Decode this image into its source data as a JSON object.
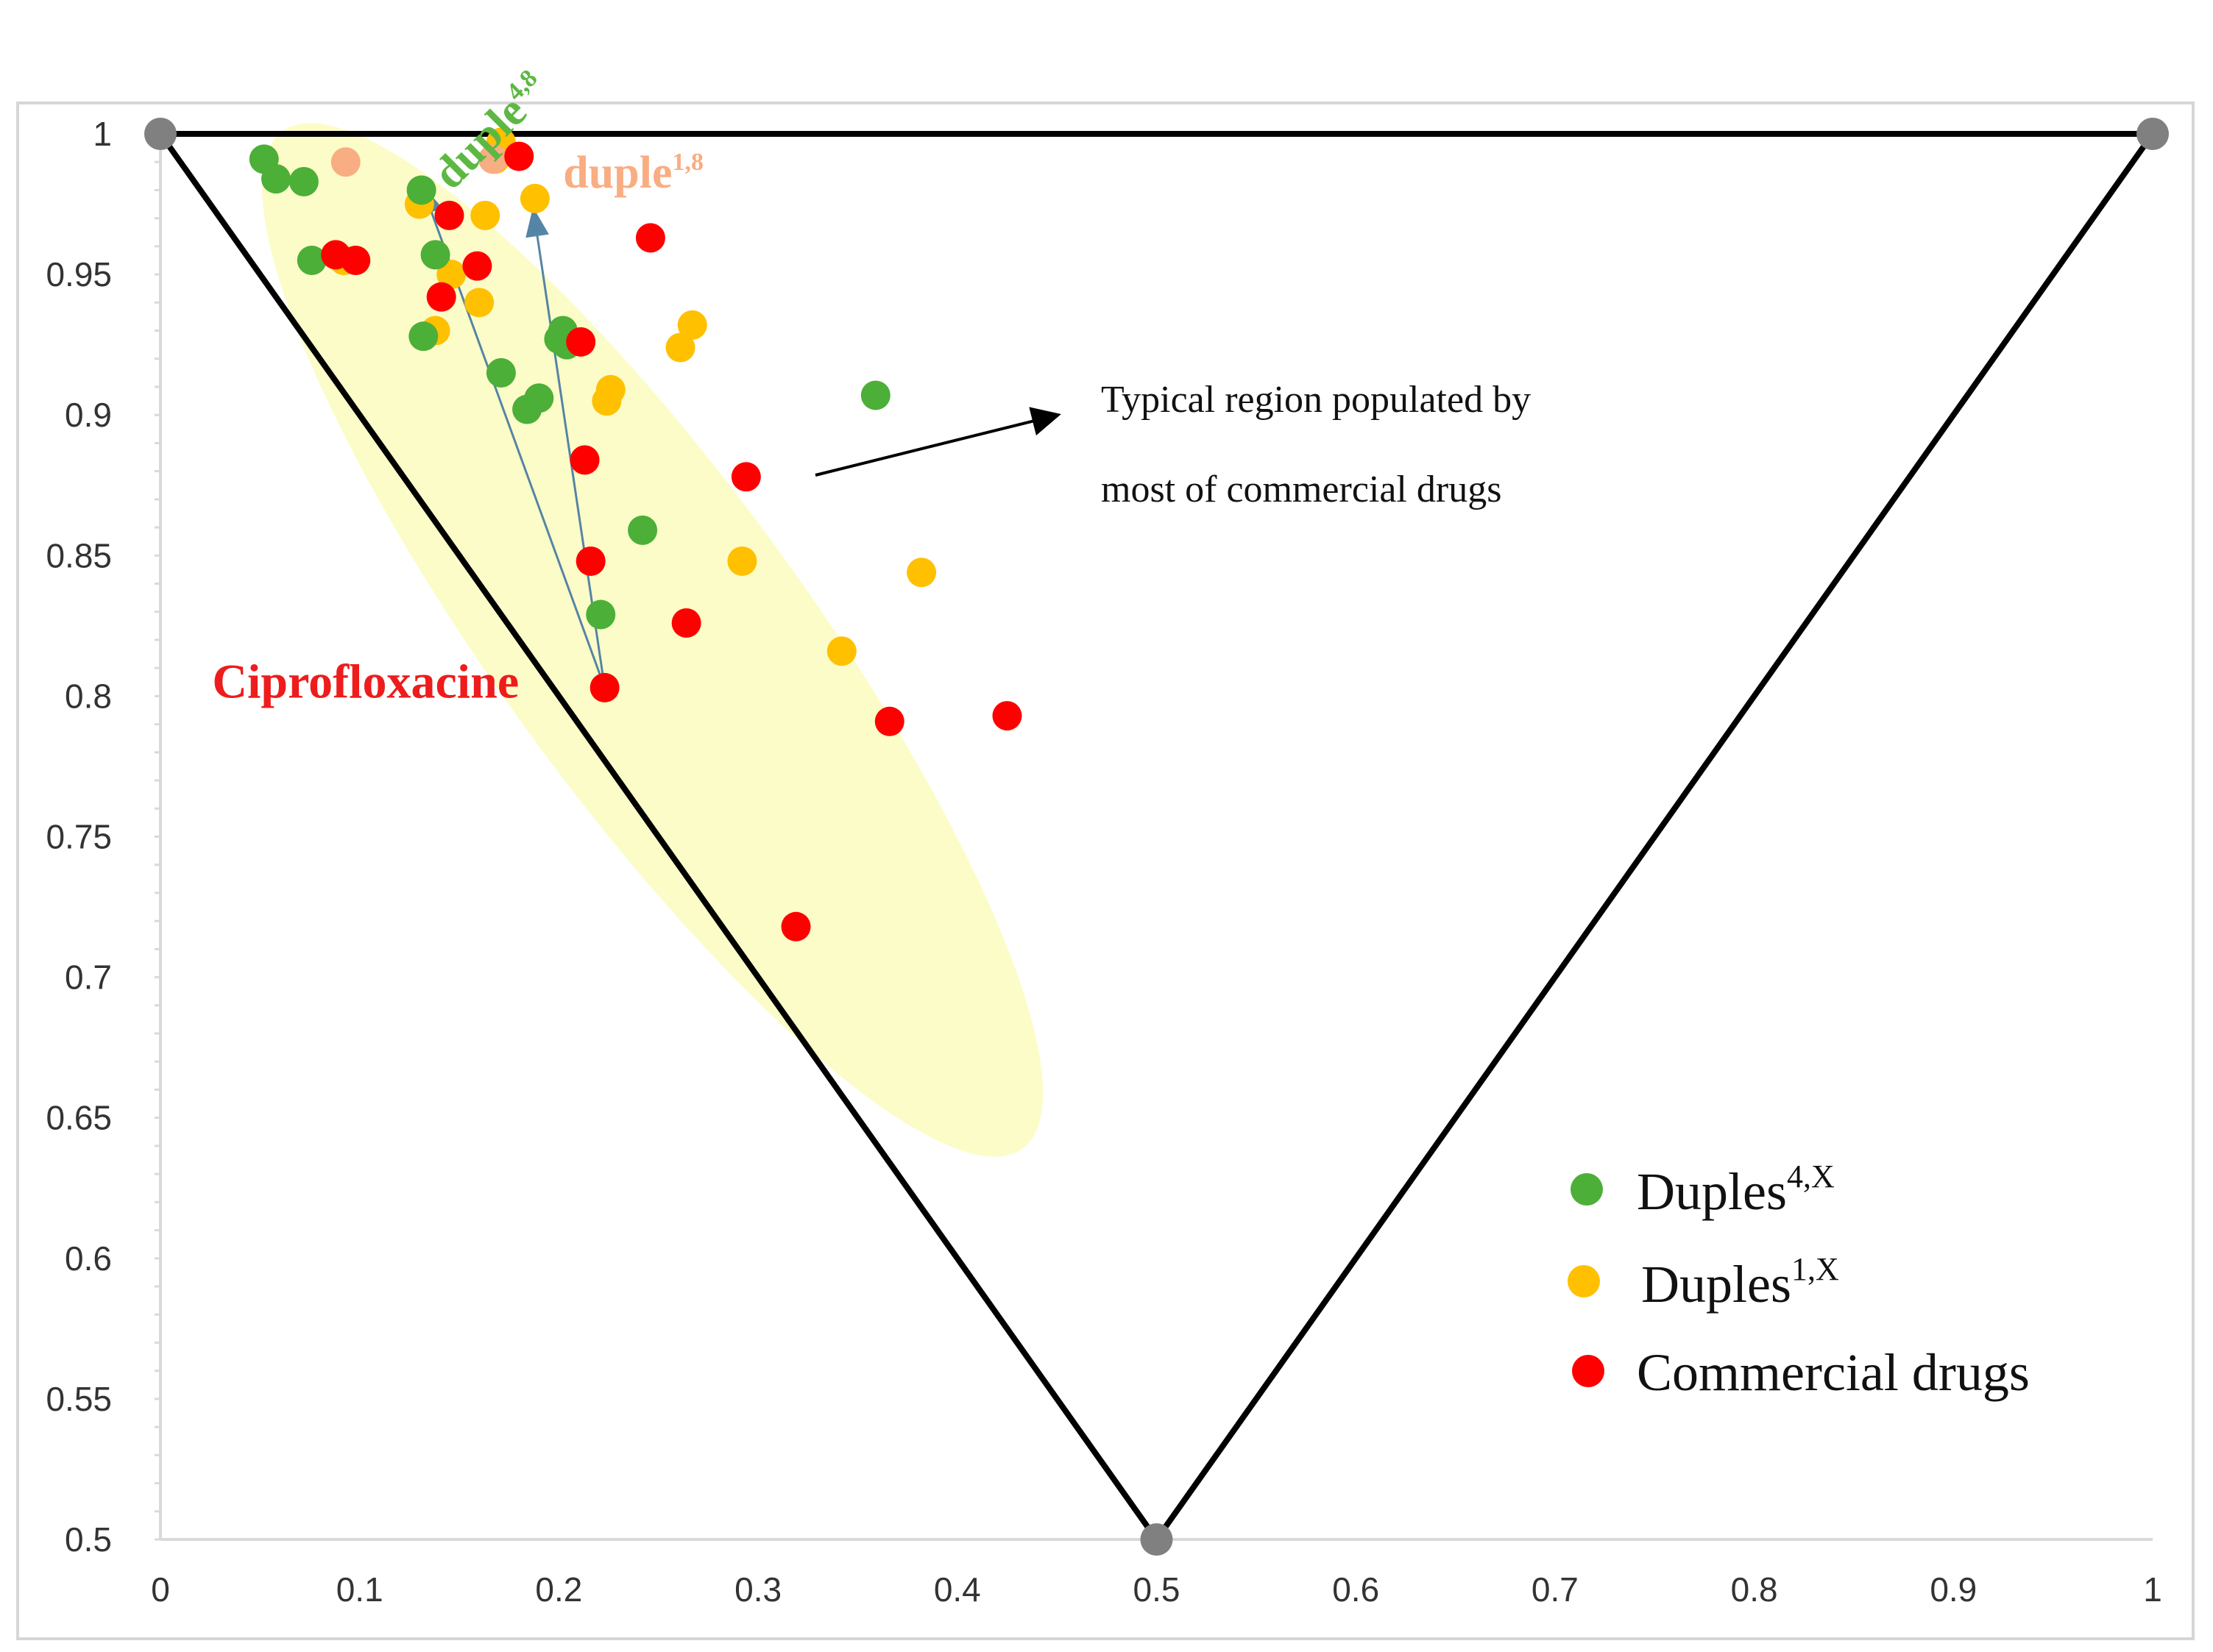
{
  "chart_data": {
    "type": "scatter",
    "title": "",
    "xlabel": "",
    "ylabel": "",
    "xlim": [
      0,
      1
    ],
    "ylim": [
      0.5,
      1
    ],
    "x_ticks": [
      "0",
      "0.1",
      "0.2",
      "0.3",
      "0.4",
      "0.5",
      "0.6",
      "0.7",
      "0.8",
      "0.9",
      "1"
    ],
    "y_ticks": [
      "0.5",
      "0.55",
      "0.6",
      "0.65",
      "0.7",
      "0.75",
      "0.8",
      "0.85",
      "0.9",
      "0.95",
      "1"
    ],
    "triangle": {
      "vertices": [
        [
          0,
          1
        ],
        [
          1,
          1
        ],
        [
          0.5,
          0.5
        ]
      ],
      "vertex_color": "#808080",
      "edge_color": "#000000"
    },
    "region": {
      "label_line1": "Typical region populated by",
      "label_line2": "most of commercial drugs",
      "fill": "#fcfcc8",
      "center": [
        0.247,
        0.82
      ],
      "semi_axes": [
        0.28,
        0.085
      ],
      "angle_deg": -54
    },
    "series": [
      {
        "name": "Duples",
        "superscript": "4,X",
        "color": "#4caf38",
        "points": [
          [
            0.052,
            0.991
          ],
          [
            0.058,
            0.984
          ],
          [
            0.072,
            0.983
          ],
          [
            0.076,
            0.955
          ],
          [
            0.131,
            0.98
          ],
          [
            0.138,
            0.957
          ],
          [
            0.132,
            0.928
          ],
          [
            0.171,
            0.915
          ],
          [
            0.184,
            0.902
          ],
          [
            0.19,
            0.906
          ],
          [
            0.2,
            0.927
          ],
          [
            0.202,
            0.93
          ],
          [
            0.204,
            0.925
          ],
          [
            0.221,
            0.829
          ],
          [
            0.242,
            0.859
          ],
          [
            0.359,
            0.907
          ]
        ]
      },
      {
        "name": "Duples",
        "superscript": "1,X",
        "color": "#ffc000",
        "points": [
          [
            0.092,
            0.955
          ],
          [
            0.13,
            0.975
          ],
          [
            0.138,
            0.93
          ],
          [
            0.146,
            0.95
          ],
          [
            0.16,
            0.94
          ],
          [
            0.163,
            0.971
          ],
          [
            0.168,
            0.991
          ],
          [
            0.171,
            0.997
          ],
          [
            0.188,
            0.977
          ],
          [
            0.224,
            0.905
          ],
          [
            0.226,
            0.909
          ],
          [
            0.261,
            0.924
          ],
          [
            0.267,
            0.932
          ],
          [
            0.292,
            0.848
          ],
          [
            0.342,
            0.816
          ],
          [
            0.382,
            0.844
          ]
        ]
      },
      {
        "name": "Commercial drugs",
        "superscript": "",
        "color": "#ff0000",
        "points": [
          [
            0.088,
            0.957
          ],
          [
            0.098,
            0.955
          ],
          [
            0.141,
            0.942
          ],
          [
            0.145,
            0.971
          ],
          [
            0.159,
            0.953
          ],
          [
            0.18,
            0.992
          ],
          [
            0.211,
            0.926
          ],
          [
            0.213,
            0.884
          ],
          [
            0.216,
            0.848
          ],
          [
            0.223,
            0.803
          ],
          [
            0.246,
            0.963
          ],
          [
            0.264,
            0.826
          ],
          [
            0.294,
            0.878
          ],
          [
            0.319,
            0.718
          ],
          [
            0.366,
            0.791
          ],
          [
            0.425,
            0.793
          ]
        ]
      },
      {
        "name": "Duple 1,8 highlight",
        "superscript": "",
        "color": "#f9ad82",
        "points": [
          [
            0.093,
            0.99
          ],
          [
            0.167,
            0.991
          ]
        ]
      }
    ],
    "annotations": [
      {
        "text": "duple",
        "superscript": "4,8",
        "color": "#5cb842",
        "rotation_deg": -45,
        "anchor": [
          0.13,
          0.99
        ]
      },
      {
        "text": "duple",
        "superscript": "1,8",
        "color": "#f9ad82",
        "rotation_deg": 0,
        "anchor": [
          0.197,
          0.983
        ]
      },
      {
        "text": "Ciprofloxacine",
        "superscript": "",
        "color": "#ee1c1c",
        "rotation_deg": 0,
        "anchor": [
          0.026,
          0.8
        ]
      }
    ],
    "arrows": [
      {
        "from": [
          0.223,
          0.803
        ],
        "to": [
          0.131,
          0.982
        ],
        "color": "#5585a5"
      },
      {
        "from": [
          0.223,
          0.803
        ],
        "to": [
          0.187,
          0.974
        ],
        "color": "#5585a5"
      }
    ],
    "legend": {
      "position": "bottom-right",
      "entries": [
        {
          "name": "Duples",
          "superscript": "4,X",
          "color": "#4caf38"
        },
        {
          "name": "Duples",
          "superscript": "1,X",
          "color": "#ffc000"
        },
        {
          "name": "Commercial drugs",
          "superscript": "",
          "color": "#ff0000"
        }
      ]
    }
  }
}
